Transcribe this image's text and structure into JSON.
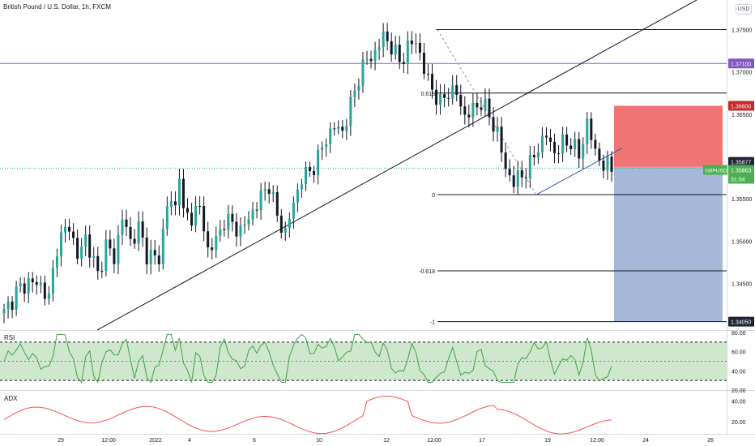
{
  "header": {
    "title": "British Pound / U.S. Dollar, 1h, FXCM",
    "currency": "USD"
  },
  "colors": {
    "up": "#26a69a",
    "down": "#131722",
    "candle": "#131722",
    "purple_line": "#8e5cd9",
    "red_zone": "#f07474",
    "blue_zone": "#a6b8d8",
    "rsi_band": "#cfe7cc",
    "rsi_line": "#43a047",
    "adx_line": "#ef5350",
    "price_tag_green": "#4caf50",
    "price_tag_red": "#c62828",
    "price_tag_dark": "#1e2433",
    "price_tag_purple": "#7e57c2"
  },
  "price_axis": {
    "labels": [
      "1.37500",
      "1.37000",
      "1.36500",
      "1.35500",
      "1.35000",
      "1.34500"
    ],
    "tags": {
      "purple_level": "1.37100",
      "stop": "1.36600",
      "entry": "1.35877",
      "symbol": "GBPUSD",
      "last": "1.35863",
      "countdown": "31:04",
      "target": "1.34050"
    }
  },
  "fib_labels": [
    "0.618",
    "0",
    "-0.618",
    "-1"
  ],
  "time_axis": [
    "29",
    "12:00",
    "2022",
    "4",
    "6",
    "10",
    "12",
    "12:00",
    "17",
    "19",
    "12:00",
    "24",
    "26"
  ],
  "rsi": {
    "label": "RSI",
    "axis": [
      "80.00",
      "60.00",
      "40.00",
      "20.00"
    ]
  },
  "adx": {
    "label": "ADX",
    "axis": [
      "40.00",
      "20.00"
    ]
  },
  "chart_data": [
    {
      "type": "candlestick",
      "title": "British Pound / U.S. Dollar, 1h, FXCM",
      "ylim": [
        1.3395,
        1.3785
      ],
      "levels": {
        "fib_1": 1.375,
        "fib_0618": 1.3675,
        "fib_0": 1.3555,
        "fib_neg0618": 1.3465,
        "fib_neg1": 1.3405,
        "purple": 1.371,
        "stop": 1.366,
        "entry": 1.35877,
        "last": 1.35863,
        "target": 1.3405
      },
      "approx_close_path": [
        [
          0,
          1.3415
        ],
        [
          3,
          1.344
        ],
        [
          6,
          1.3452
        ],
        [
          9,
          1.3448
        ],
        [
          11,
          1.3432
        ],
        [
          13,
          1.3495
        ],
        [
          16,
          1.352
        ],
        [
          18,
          1.348
        ],
        [
          20,
          1.3505
        ],
        [
          23,
          1.346
        ],
        [
          25,
          1.3495
        ],
        [
          27,
          1.348
        ],
        [
          29,
          1.3528
        ],
        [
          31,
          1.35
        ],
        [
          33,
          1.3515
        ],
        [
          35,
          1.3485
        ],
        [
          38,
          1.3478
        ],
        [
          40,
          1.3545
        ],
        [
          42,
          1.354
        ],
        [
          43,
          1.3585
        ],
        [
          44,
          1.353
        ],
        [
          46,
          1.353
        ],
        [
          48,
          1.354
        ],
        [
          50,
          1.349
        ],
        [
          52,
          1.35
        ],
        [
          54,
          1.3525
        ],
        [
          56,
          1.352
        ],
        [
          58,
          1.3512
        ],
        [
          61,
          1.3535
        ],
        [
          63,
          1.3552
        ],
        [
          65,
          1.3568
        ],
        [
          67,
          1.3528
        ],
        [
          69,
          1.351
        ],
        [
          71,
          1.3545
        ],
        [
          73,
          1.3575
        ],
        [
          75,
          1.3582
        ],
        [
          77,
          1.3598
        ],
        [
          79,
          1.3622
        ],
        [
          81,
          1.3635
        ],
        [
          83,
          1.363
        ],
        [
          85,
          1.366
        ],
        [
          87,
          1.3695
        ],
        [
          89,
          1.3715
        ],
        [
          91,
          1.3722
        ],
        [
          93,
          1.3743
        ],
        [
          95,
          1.373
        ],
        [
          97,
          1.3712
        ],
        [
          99,
          1.3728
        ],
        [
          101,
          1.3738
        ],
        [
          103,
          1.3702
        ],
        [
          105,
          1.368
        ],
        [
          107,
          1.3662
        ],
        [
          109,
          1.3678
        ],
        [
          111,
          1.3674
        ],
        [
          113,
          1.3648
        ],
        [
          115,
          1.3655
        ],
        [
          117,
          1.3665
        ],
        [
          119,
          1.3648
        ],
        [
          121,
          1.3628
        ],
        [
          123,
          1.3585
        ],
        [
          125,
          1.357
        ],
        [
          127,
          1.3578
        ],
        [
          129,
          1.359
        ],
        [
          131,
          1.3612
        ],
        [
          133,
          1.3625
        ],
        [
          135,
          1.3605
        ],
        [
          137,
          1.3615
        ],
        [
          139,
          1.3618
        ],
        [
          141,
          1.36
        ],
        [
          143,
          1.364
        ],
        [
          145,
          1.3605
        ],
        [
          147,
          1.359
        ],
        [
          149,
          1.3586
        ]
      ]
    }
  ]
}
